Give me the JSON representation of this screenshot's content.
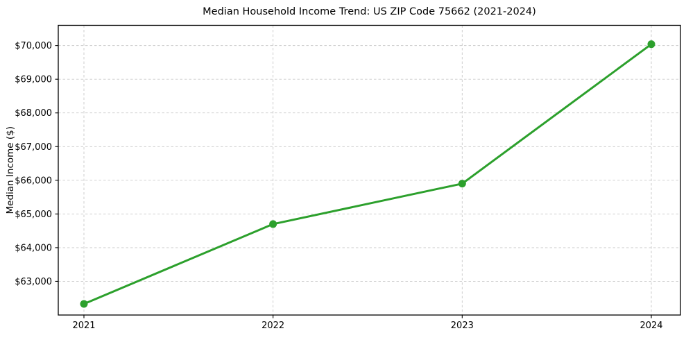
{
  "page": {
    "background": "#ffffff"
  },
  "chart_data": {
    "type": "line",
    "title": "Median Household Income Trend: US ZIP Code 75662 (2021-2024)",
    "xlabel": "",
    "ylabel": "Median Income ($)",
    "x": [
      "2021",
      "2022",
      "2023",
      "2024"
    ],
    "values": [
      62330,
      64700,
      65900,
      70040
    ],
    "yticks": [
      63000,
      64000,
      65000,
      66000,
      67000,
      68000,
      69000,
      70000
    ],
    "ytick_labels": [
      "$63,000",
      "$64,000",
      "$65,000",
      "$66,000",
      "$67,000",
      "$68,000",
      "$69,000",
      "$70,000"
    ],
    "ylim": [
      62000,
      70600
    ],
    "grid": {
      "show": true,
      "style": "dashed",
      "color": "#c9c9c9"
    },
    "legend_position": "none",
    "line_color": "#2ca02c",
    "marker": "circle",
    "marker_color": "#2ca02c",
    "spine_color": "#000000",
    "tick_color": "#000000",
    "text_color": "#000000"
  }
}
